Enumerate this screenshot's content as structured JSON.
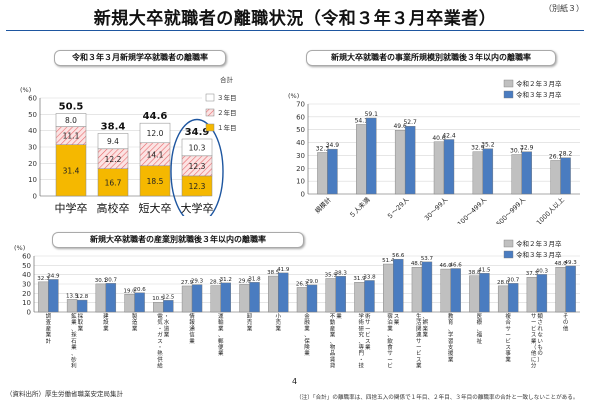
{
  "header": {
    "title": "新規大卒就職者の離職状況（令和３年３月卒業者）",
    "corner_note": "（別紙３）"
  },
  "footer": {
    "source": "（資料出所）厚生労働省職業安定局集計",
    "page": "4",
    "note": "（注）「合計」の離職率は、四捨五入の関係で１年目、２年目、３年目の離職率の合計と一致しないことがある。"
  },
  "colors": {
    "year1": "#f5b800",
    "year2": "#f4b5b5",
    "year3": "#ffffff",
    "r2": "#c0c0c0",
    "r3": "#4a7cc0",
    "ellipse": "#1e56a0"
  },
  "chart_data": [
    {
      "type": "bar",
      "title": "令和３年３月新規学卒就職者の離職率",
      "ylabel": "(%)",
      "ylim": [
        0,
        60
      ],
      "yticks": [
        "0",
        "10",
        "20",
        "30",
        "40",
        "50",
        "60"
      ],
      "categories": [
        "中学卒",
        "高校卒",
        "短大卒",
        "大学卒"
      ],
      "stacked": true,
      "series": [
        {
          "name": "１年目",
          "values": [
            31.4,
            16.7,
            18.5,
            12.3
          ],
          "labels": [
            "31.4",
            "16.7",
            "18.5",
            "12.3"
          ]
        },
        {
          "name": "２年目",
          "values": [
            11.1,
            12.2,
            14.1,
            12.3
          ],
          "labels": [
            "11.1",
            "12.2",
            "14.1",
            "12.3"
          ]
        },
        {
          "name": "３年目",
          "values": [
            8.0,
            9.4,
            12.0,
            10.3
          ],
          "labels": [
            "8.0",
            "9.4",
            "12.0",
            "10.3"
          ]
        }
      ],
      "totals": [
        "50.5",
        "38.4",
        "44.6",
        "34.9"
      ],
      "legend_title": "合計",
      "legend_position": "top-right",
      "highlight": "大学卒"
    },
    {
      "type": "bar",
      "title": "新規大卒就職者の事業所規模別就職後３年以内の離職率",
      "ylabel": "(%)",
      "ylim": [
        0,
        70
      ],
      "yticks": [
        "0",
        "10",
        "20",
        "30",
        "40",
        "50",
        "60",
        "70"
      ],
      "categories": [
        "規模計",
        "５人未満",
        "５〜29人",
        "30〜99人",
        "100〜499人",
        "500〜999人",
        "1000人以上"
      ],
      "series": [
        {
          "name": "令和２年３月卒",
          "values": [
            32.3,
            54.1,
            49.6,
            40.6,
            32.9,
            30.7,
            26.1
          ],
          "labels": [
            "32.3",
            "54.1",
            "49.6",
            "40.6",
            "32.9",
            "30.7",
            "26.1"
          ]
        },
        {
          "name": "令和３年３月卒",
          "values": [
            34.9,
            59.1,
            52.7,
            42.4,
            35.2,
            32.9,
            28.2
          ],
          "labels": [
            "34.9",
            "59.1",
            "52.7",
            "42.4",
            "35.2",
            "32.9",
            "28.2"
          ]
        }
      ],
      "legend_position": "top-right"
    },
    {
      "type": "bar",
      "title": "新規大卒就職者の産業別就職後３年以内の離職率",
      "ylabel": "(%)",
      "ylim": [
        0,
        60
      ],
      "yticks": [
        "0",
        "10",
        "20",
        "30",
        "40",
        "50",
        "60"
      ],
      "categories": [
        "調査産業計",
        "鉱業、採石業、砂利採取業",
        "建設業",
        "製造業",
        "電気・ガス・熱供給・水道業",
        "情報通信業",
        "運輸業、郵便業",
        "卸売業",
        "小売業",
        "金融業、保険業",
        "不動産業、物品賃貸業",
        "学術研究、専門・技術サービス業",
        "宿泊業、飲食サービス業",
        "生活関連サービス業、娯楽業",
        "教育、学習支援業",
        "医療、福祉",
        "複合サービス事業",
        "サービス業（他に分類されないもの）",
        "その他"
      ],
      "series": [
        {
          "name": "令和２年３月卒",
          "values": [
            32.3,
            13.5,
            30.1,
            19.0,
            10.5,
            27.9,
            28.3,
            29.6,
            38.5,
            26.3,
            35.9,
            31.9,
            51.4,
            48.0,
            46.0,
            38.8,
            28.0,
            37.3,
            48.0
          ],
          "labels": [
            "32.3",
            "13.5",
            "30.1",
            "19.0",
            "10.5",
            "27.9",
            "28.3",
            "29.6",
            "38.5",
            "26.3",
            "35.9",
            "31.9",
            "51.4",
            "48.0",
            "46.0",
            "38.8",
            "28.0",
            "37.3",
            "48.0"
          ]
        },
        {
          "name": "令和３年３月卒",
          "values": [
            34.9,
            12.8,
            30.7,
            20.6,
            12.5,
            29.3,
            31.2,
            31.8,
            41.9,
            29.0,
            38.3,
            33.8,
            56.6,
            53.7,
            46.6,
            41.5,
            30.7,
            40.3,
            49.3
          ],
          "labels": [
            "34.9",
            "12.8",
            "30.7",
            "20.6",
            "12.5",
            "29.3",
            "31.2",
            "31.8",
            "41.9",
            "29.0",
            "38.3",
            "33.8",
            "56.6",
            "53.7",
            "46.6",
            "41.5",
            "30.7",
            "40.3",
            "49.3"
          ]
        }
      ],
      "legend_position": "top-right"
    }
  ]
}
